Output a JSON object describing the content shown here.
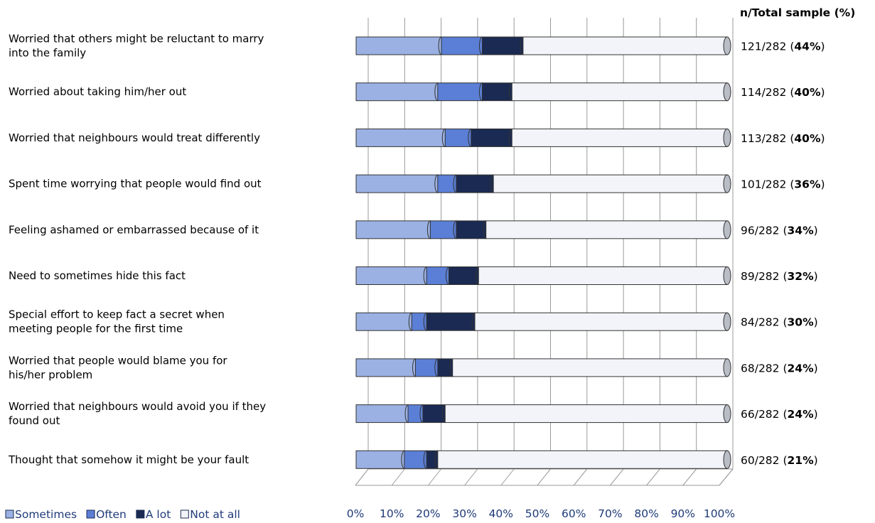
{
  "chart_data": {
    "type": "bar",
    "orientation": "horizontal",
    "stacked": true,
    "percent_stacked": true,
    "right_header": "n/Total sample (%)",
    "x_ticks": [
      "0%",
      "10%",
      "20%",
      "30%",
      "40%",
      "50%",
      "60%",
      "70%",
      "80%",
      "90%",
      "100%"
    ],
    "xlim": [
      0,
      100
    ],
    "grid": true,
    "legend_position": "bottom-left",
    "categories": [
      [
        "Worried that  others might be reluctant to marry",
        "into the family"
      ],
      [
        "Worried about taking him/her out"
      ],
      [
        "Worried that neighbours would treat differently"
      ],
      [
        "Spent time worrying that people would find out"
      ],
      [
        "Feeling ashamed or embarrassed because of it"
      ],
      [
        "Need to sometimes hide this fact"
      ],
      [
        "Special effort to keep fact a secret when",
        "meeting people for the first time"
      ],
      [
        "Worried that people would blame you for",
        "his/her problem"
      ],
      [
        "Worried that neighbours would avoid you if  they",
        "found out"
      ],
      [
        "Thought that somehow it might be your fault"
      ]
    ],
    "series": [
      {
        "name": "Sometimes",
        "color": "#9bb1e3",
        "values": [
          23,
          22,
          24,
          22,
          20,
          19,
          15,
          16,
          14,
          13
        ]
      },
      {
        "name": "Often",
        "color": "#5b7fd6",
        "values": [
          11,
          12,
          7,
          5,
          7,
          6,
          4,
          6,
          4,
          6
        ]
      },
      {
        "name": "A lot",
        "color": "#1a2a52",
        "values": [
          11,
          8,
          11,
          10,
          8,
          8,
          13,
          4,
          6,
          3
        ]
      },
      {
        "name": "Not at all",
        "color": "#f2f4f9",
        "values": [
          55,
          58,
          58,
          63,
          65,
          67,
          68,
          74,
          76,
          78
        ]
      }
    ],
    "totals": [
      {
        "n": "121/282",
        "pct": "44%"
      },
      {
        "n": "114/282",
        "pct": "40%"
      },
      {
        "n": "113/282",
        "pct": "40%"
      },
      {
        "n": "101/282",
        "pct": "36%"
      },
      {
        "n": "96/282",
        "pct": "34%"
      },
      {
        "n": "89/282",
        "pct": "32%"
      },
      {
        "n": "84/282",
        "pct": "30%"
      },
      {
        "n": "68/282",
        "pct": "24%"
      },
      {
        "n": "66/282",
        "pct": "24%"
      },
      {
        "n": "60/282",
        "pct": "21%"
      }
    ]
  }
}
